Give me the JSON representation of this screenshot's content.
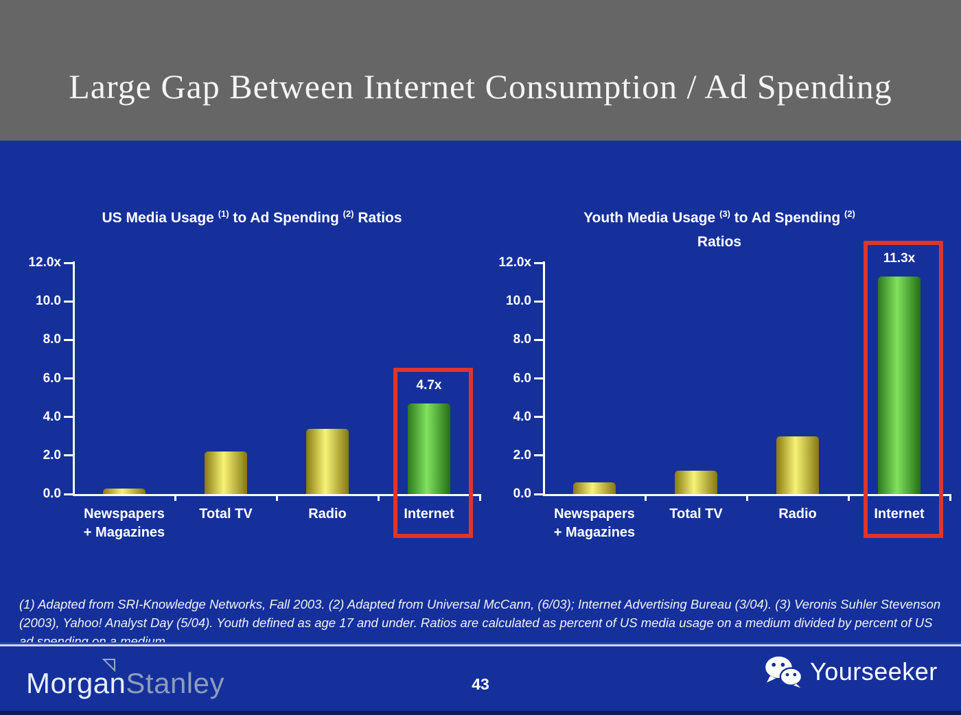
{
  "slide_title": "Large Gap Between Internet Consumption / Ad Spending",
  "footnote": "(1) Adapted from SRI-Knowledge Networks, Fall 2003.  (2) Adapted from Universal McCann, (6/03); Internet Advertising Bureau (3/04). (3) Veronis Suhler Stevenson (2003), Yahoo! Analyst Day (5/04).  Youth defined as age 17 and under.  Ratios are calculated as percent of US media usage on a medium divided by percent of US ad spending on a medium.",
  "footer": {
    "brand_part1": "Morgan",
    "brand_part2": "Stanley",
    "brand_icon": "pennant-triangle-icon",
    "page_number": "43",
    "watermark_label": "Yourseeker",
    "watermark_icon": "wechat-icon"
  },
  "colors": {
    "background_blue": "#15309b",
    "header_gray": "#666666",
    "highlight_red": "#e0352b",
    "text_white": "#ffffff",
    "bar_yellow": [
      "#8a7a12",
      "#f6f375",
      "#877712"
    ],
    "bar_green": [
      "#2d7a1c",
      "#80e25e",
      "#256e15"
    ]
  },
  "chart_data": [
    {
      "type": "bar",
      "title": "US Media Usage (1) to Ad Spending (2) Ratios",
      "title_segments": [
        {
          "text": "US Media Usage "
        },
        {
          "sup": "(1)"
        },
        {
          "text": " to Ad Spending "
        },
        {
          "sup": "(2)"
        },
        {
          "text": " Ratios"
        }
      ],
      "categories": [
        [
          "Newspapers",
          "+ Magazines"
        ],
        [
          "Total TV"
        ],
        [
          "Radio"
        ],
        [
          "Internet"
        ]
      ],
      "values": [
        0.3,
        2.2,
        3.4,
        4.7
      ],
      "bar_colors": [
        "yellow",
        "yellow",
        "yellow",
        "green"
      ],
      "highlight": {
        "index": 3,
        "label": "4.7x"
      },
      "y_ticks": [
        {
          "value": 12,
          "label": "12.0x"
        },
        {
          "value": 10,
          "label": "10.0"
        },
        {
          "value": 8,
          "label": "8.0"
        },
        {
          "value": 6,
          "label": "6.0"
        },
        {
          "value": 4,
          "label": "4.0"
        },
        {
          "value": 2,
          "label": "2.0"
        },
        {
          "value": 0,
          "label": "0.0"
        }
      ],
      "ylim": [
        0,
        12
      ],
      "grid": false,
      "legend": null
    },
    {
      "type": "bar",
      "title": "Youth Media Usage (3) to Ad Spending (2) Ratios",
      "title_segments": [
        {
          "text": "Youth Media Usage "
        },
        {
          "sup": "(3)"
        },
        {
          "text": " to Ad Spending "
        },
        {
          "sup": "(2)"
        },
        {
          "br": true
        },
        {
          "text": "Ratios"
        }
      ],
      "categories": [
        [
          "Newspapers",
          "+ Magazines"
        ],
        [
          "Total TV"
        ],
        [
          "Radio"
        ],
        [
          "Internet"
        ]
      ],
      "values": [
        0.6,
        1.2,
        3.0,
        11.3
      ],
      "bar_colors": [
        "yellow",
        "yellow",
        "yellow",
        "green"
      ],
      "highlight": {
        "index": 3,
        "label": "11.3x"
      },
      "y_ticks": [
        {
          "value": 12,
          "label": "12.0x"
        },
        {
          "value": 10,
          "label": "10.0"
        },
        {
          "value": 8,
          "label": "8.0"
        },
        {
          "value": 6,
          "label": "6.0"
        },
        {
          "value": 4,
          "label": "4.0"
        },
        {
          "value": 2,
          "label": "2.0"
        },
        {
          "value": 0,
          "label": "0.0"
        }
      ],
      "ylim": [
        0,
        12
      ],
      "grid": false,
      "legend": null
    }
  ]
}
